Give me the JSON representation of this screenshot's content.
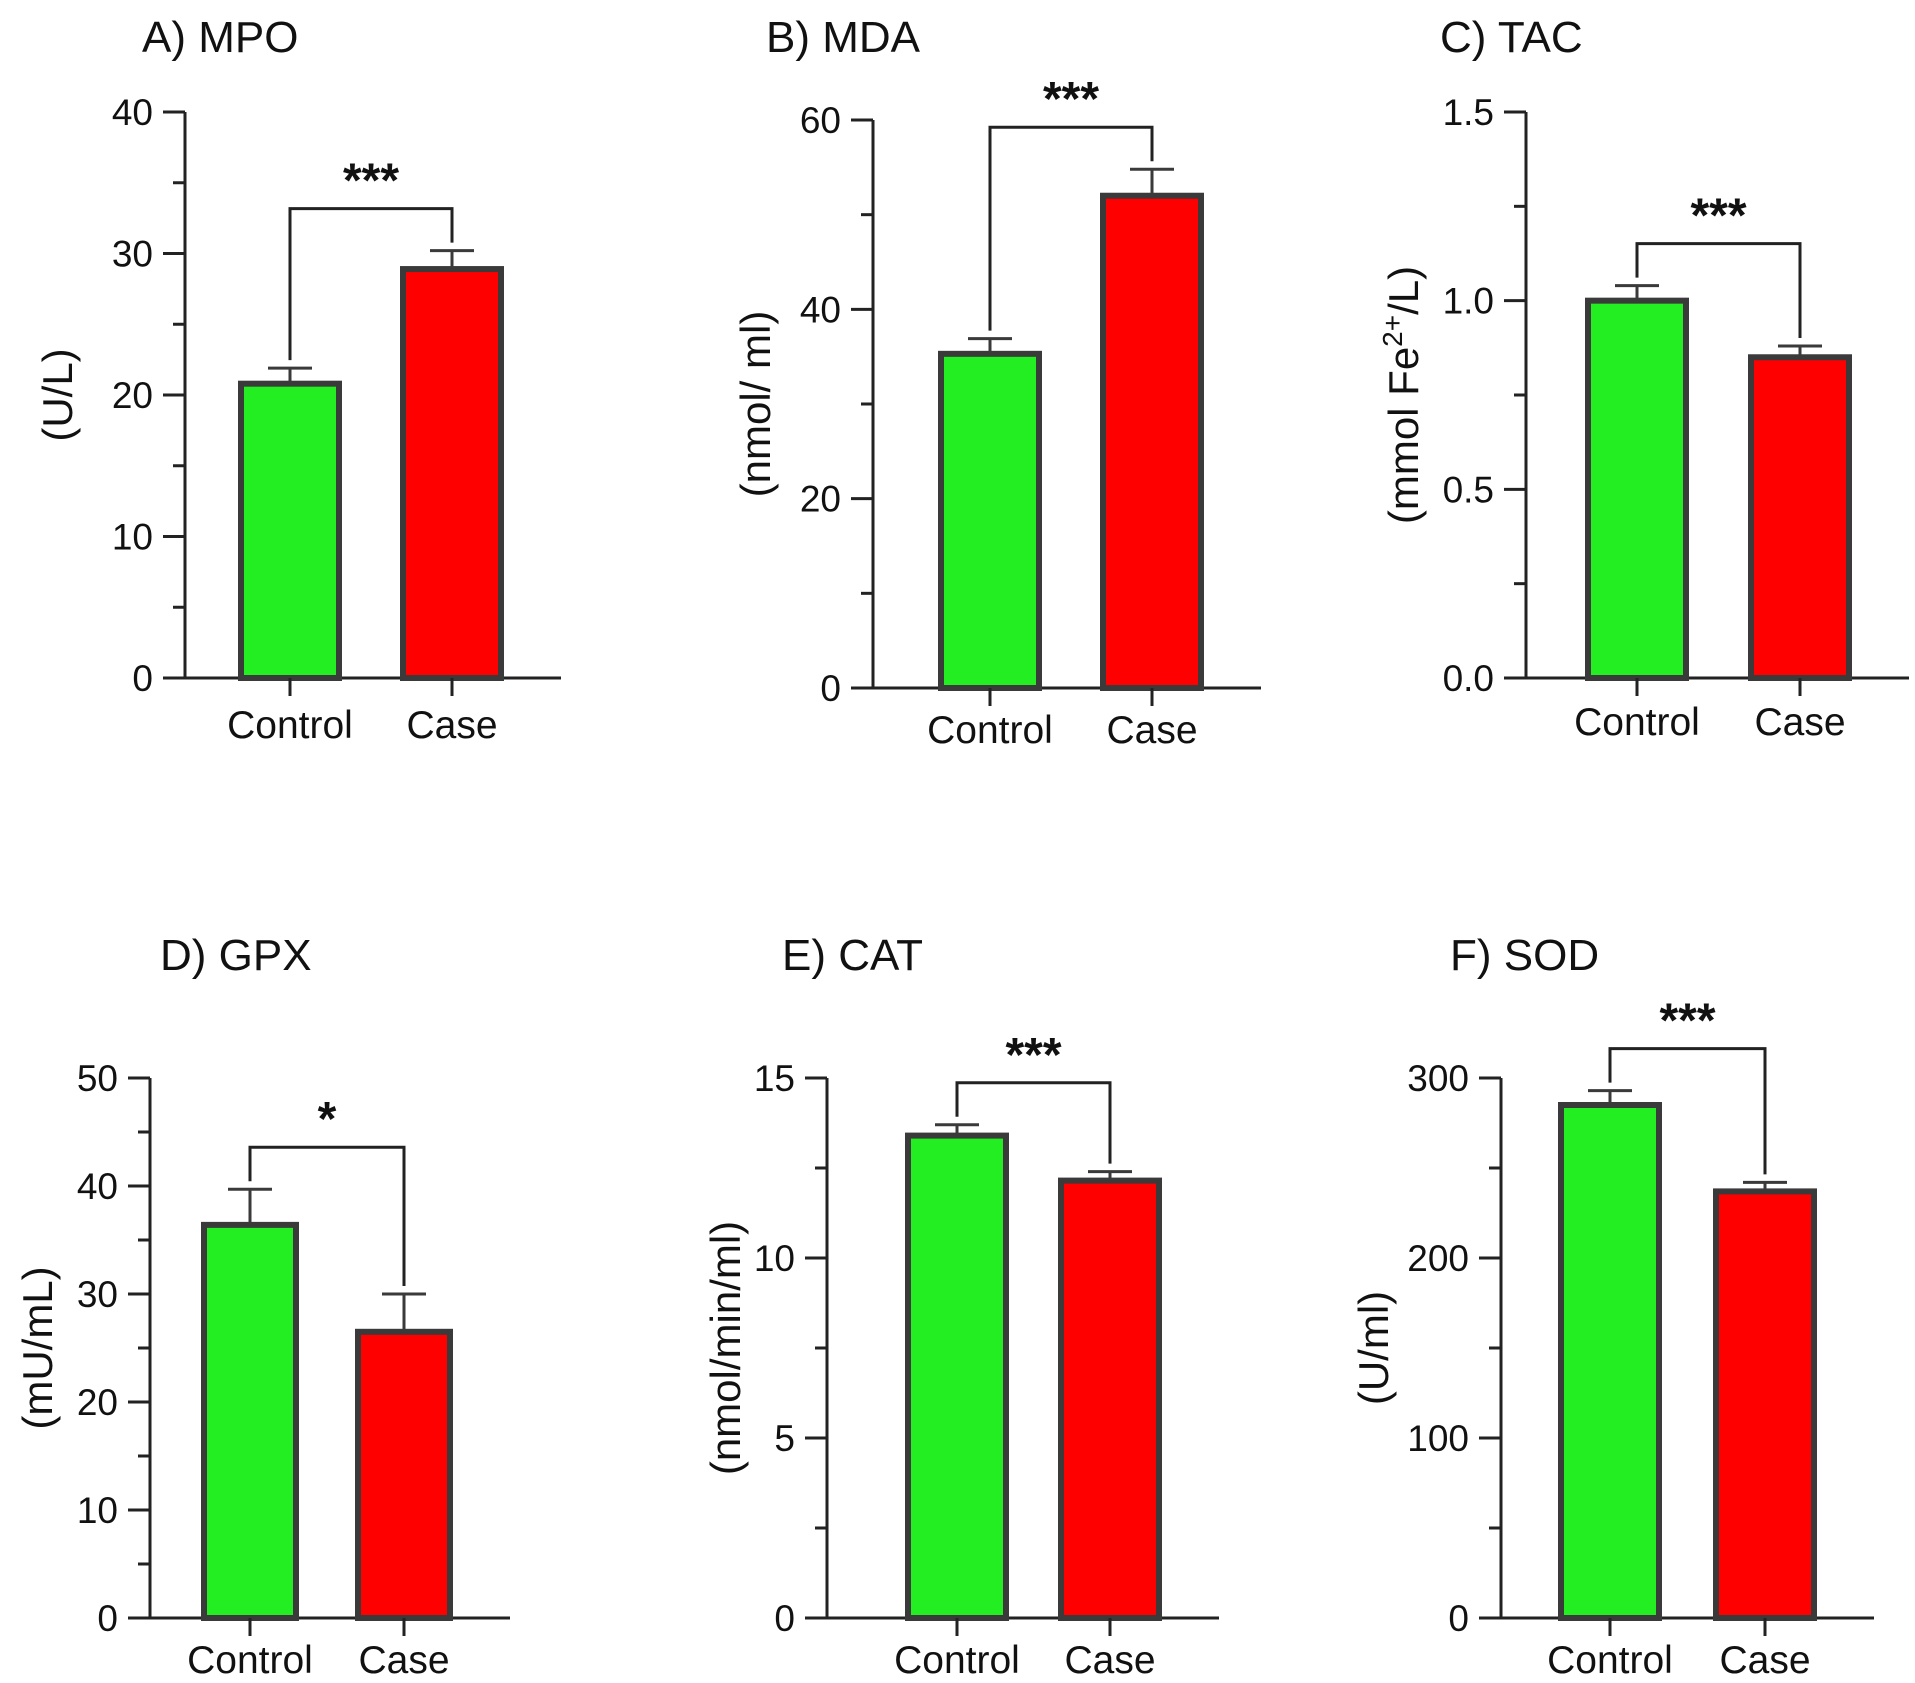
{
  "figure": {
    "bg": "#ffffff",
    "colors": {
      "control": "#22ee22",
      "case": "#ff0000",
      "outline": "#3a3a3a"
    }
  },
  "chart_data": [
    {
      "id": "A",
      "type": "bar",
      "title": "A) MPO",
      "ylabel": "(U/L)",
      "categories": [
        "Control",
        "Case"
      ],
      "values": [
        20.8,
        28.9
      ],
      "errors": [
        1.1,
        1.3
      ],
      "ylim": [
        0,
        40
      ],
      "yticks": [
        0,
        10,
        20,
        30,
        40
      ],
      "ytick_labels": [
        "0",
        "10",
        "20",
        "30",
        "40"
      ],
      "minor_per_major": 2,
      "significance": "***"
    },
    {
      "id": "B",
      "type": "bar",
      "title": "B) MDA",
      "ylabel": "(nmol/ ml)",
      "categories": [
        "Control",
        "Case"
      ],
      "values": [
        35.3,
        52.0
      ],
      "errors": [
        1.6,
        2.8
      ],
      "ylim": [
        0,
        60
      ],
      "yticks": [
        0,
        20,
        40,
        60
      ],
      "ytick_labels": [
        "0",
        "20",
        "40",
        "60"
      ],
      "minor_per_major": 2,
      "significance": "***"
    },
    {
      "id": "C",
      "type": "bar",
      "title": "C) TAC",
      "ylabel": "(mmol Fe2+/L)",
      "ylabel_parts": {
        "before": "(mmol Fe",
        "sup": "2+",
        "after": "/L)"
      },
      "categories": [
        "Control",
        "Case"
      ],
      "values": [
        1.0,
        0.85
      ],
      "errors": [
        0.04,
        0.03
      ],
      "ylim": [
        0,
        1.5
      ],
      "yticks": [
        0,
        0.5,
        1.0,
        1.5
      ],
      "ytick_labels": [
        "0.0",
        "0.5",
        "1.0",
        "1.5"
      ],
      "minor_per_major": 2,
      "significance": "***"
    },
    {
      "id": "D",
      "type": "bar",
      "title": "D) GPX",
      "ylabel": "(mU/mL)",
      "categories": [
        "Control",
        "Case"
      ],
      "values": [
        36.4,
        26.5
      ],
      "errors": [
        3.3,
        3.5
      ],
      "ylim": [
        0,
        50
      ],
      "yticks": [
        0,
        10,
        20,
        30,
        40,
        50
      ],
      "ytick_labels": [
        "0",
        "10",
        "20",
        "30",
        "40",
        "50"
      ],
      "minor_per_major": 2,
      "significance": "*"
    },
    {
      "id": "E",
      "type": "bar",
      "title": "E) CAT",
      "ylabel": "(nmol/min/ml)",
      "categories": [
        "Control",
        "Case"
      ],
      "values": [
        13.4,
        12.15
      ],
      "errors": [
        0.3,
        0.25
      ],
      "ylim": [
        0,
        15
      ],
      "yticks": [
        0,
        5,
        10,
        15
      ],
      "ytick_labels": [
        "0",
        "5",
        "10",
        "15"
      ],
      "minor_per_major": 2,
      "significance": "***"
    },
    {
      "id": "F",
      "type": "bar",
      "title": "F) SOD",
      "ylabel": "(U/ml)",
      "categories": [
        "Control",
        "Case"
      ],
      "values": [
        285,
        237
      ],
      "errors": [
        8,
        5
      ],
      "ylim": [
        0,
        300
      ],
      "yticks": [
        0,
        100,
        200,
        300
      ],
      "ytick_labels": [
        "0",
        "100",
        "200",
        "300"
      ],
      "minor_per_major": 2,
      "significance": "***"
    }
  ]
}
